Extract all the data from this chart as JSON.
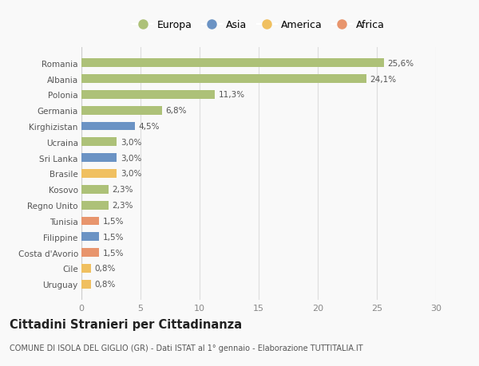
{
  "categories": [
    "Romania",
    "Albania",
    "Polonia",
    "Germania",
    "Kirghizistan",
    "Ucraina",
    "Sri Lanka",
    "Brasile",
    "Kosovo",
    "Regno Unito",
    "Tunisia",
    "Filippine",
    "Costa d'Avorio",
    "Cile",
    "Uruguay"
  ],
  "values": [
    25.6,
    24.1,
    11.3,
    6.8,
    4.5,
    3.0,
    3.0,
    3.0,
    2.3,
    2.3,
    1.5,
    1.5,
    1.5,
    0.8,
    0.8
  ],
  "labels": [
    "25,6%",
    "24,1%",
    "11,3%",
    "6,8%",
    "4,5%",
    "3,0%",
    "3,0%",
    "3,0%",
    "2,3%",
    "2,3%",
    "1,5%",
    "1,5%",
    "1,5%",
    "0,8%",
    "0,8%"
  ],
  "continents": [
    "Europa",
    "Europa",
    "Europa",
    "Europa",
    "Asia",
    "Europa",
    "Asia",
    "America",
    "Europa",
    "Europa",
    "Africa",
    "Asia",
    "Africa",
    "America",
    "America"
  ],
  "continent_colors": {
    "Europa": "#adc178",
    "Asia": "#6b93c4",
    "America": "#f0c060",
    "Africa": "#e8956d"
  },
  "legend_order": [
    "Europa",
    "Asia",
    "America",
    "Africa"
  ],
  "title": "Cittadini Stranieri per Cittadinanza",
  "subtitle": "COMUNE DI ISOLA DEL GIGLIO (GR) - Dati ISTAT al 1° gennaio - Elaborazione TUTTITALIA.IT",
  "xlim": [
    0,
    30
  ],
  "xticks": [
    0,
    5,
    10,
    15,
    20,
    25,
    30
  ],
  "background_color": "#f9f9f9",
  "bar_height": 0.55,
  "grid_color": "#dddddd",
  "label_fontsize": 7.5,
  "tick_fontsize": 8,
  "title_fontsize": 10.5,
  "subtitle_fontsize": 7.0
}
